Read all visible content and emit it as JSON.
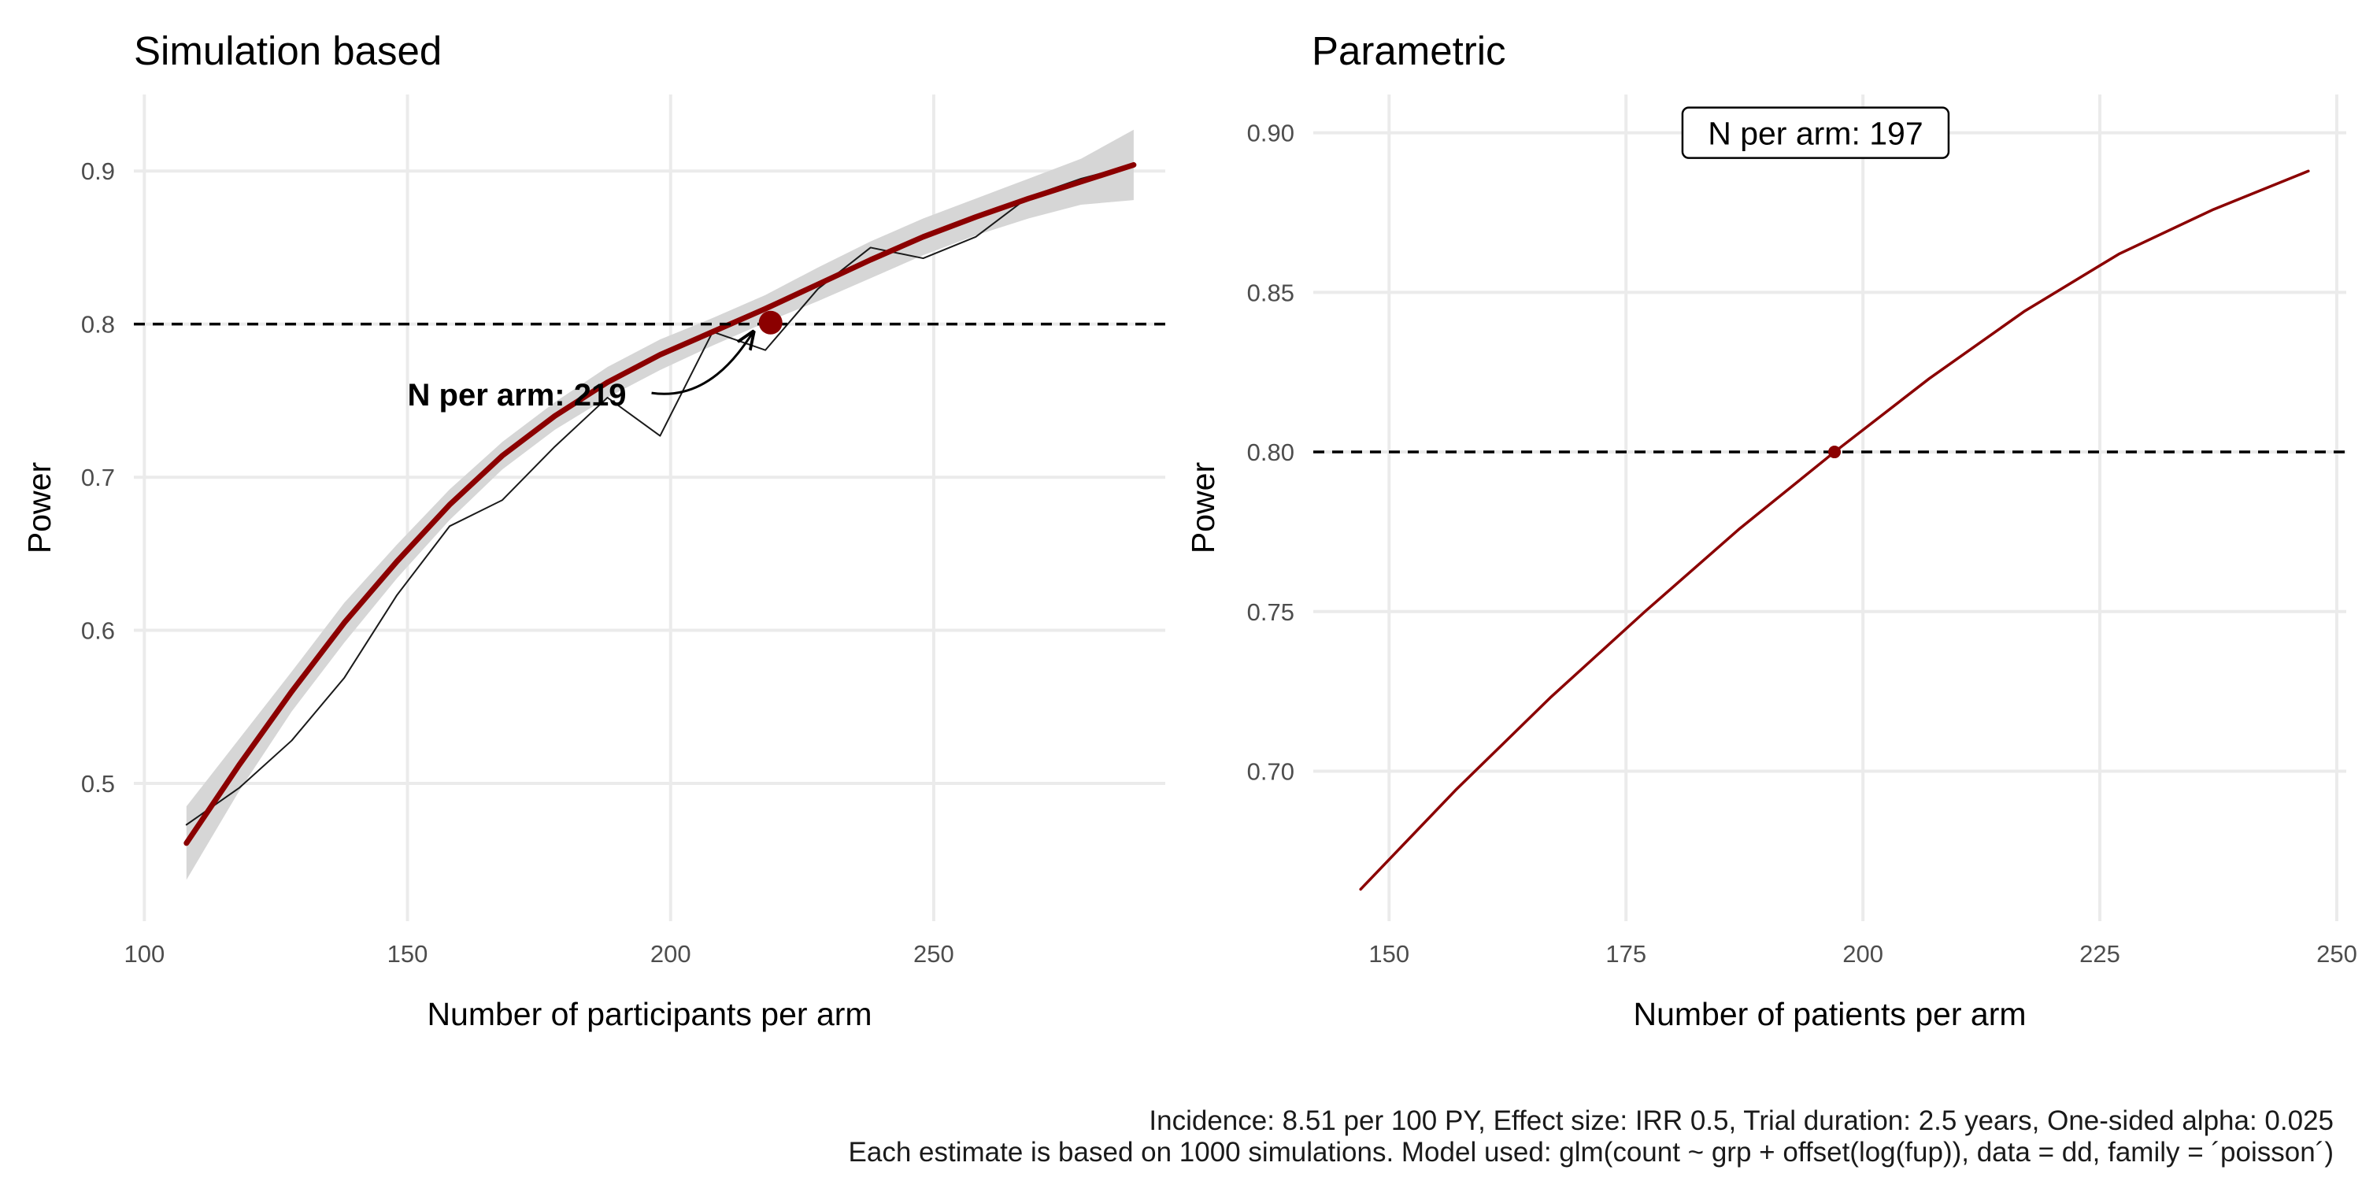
{
  "chart_data": [
    {
      "type": "line",
      "title": "Simulation based",
      "xlabel": "Number of participants per arm",
      "ylabel": "Power",
      "xlim": [
        98,
        294
      ],
      "ylim": [
        0.41,
        0.95
      ],
      "x_ticks": [
        100,
        150,
        200,
        250
      ],
      "y_ticks": [
        0.5,
        0.6,
        0.7,
        0.8,
        0.9
      ],
      "x_tick_labels": [
        "100",
        "150",
        "200",
        "250"
      ],
      "y_tick_labels": [
        "0.5",
        "0.6",
        "0.7",
        "0.8",
        "0.9"
      ],
      "grid": true,
      "reference_line": {
        "y": 0.8,
        "style": "dashed"
      },
      "series": [
        {
          "kind": "simulated",
          "color": "#1a1a1a",
          "x": [
            108,
            118,
            128,
            138,
            148,
            158,
            168,
            178,
            188,
            198,
            208,
            218,
            228,
            238,
            248,
            258,
            268,
            278,
            288
          ],
          "y": [
            0.473,
            0.497,
            0.528,
            0.569,
            0.623,
            0.668,
            0.685,
            0.72,
            0.752,
            0.727,
            0.795,
            0.783,
            0.823,
            0.85,
            0.843,
            0.857,
            0.883,
            0.895,
            0.904
          ]
        },
        {
          "kind": "smoothed",
          "color": "#8b0000",
          "x": [
            108,
            118,
            128,
            138,
            148,
            158,
            168,
            178,
            188,
            198,
            208,
            218,
            228,
            238,
            248,
            258,
            268,
            278,
            288
          ],
          "y": [
            0.461,
            0.512,
            0.56,
            0.605,
            0.645,
            0.682,
            0.714,
            0.74,
            0.762,
            0.78,
            0.795,
            0.81,
            0.826,
            0.842,
            0.857,
            0.87,
            0.882,
            0.893,
            0.904
          ],
          "band_lower": [
            0.437,
            0.495,
            0.547,
            0.592,
            0.634,
            0.672,
            0.705,
            0.731,
            0.752,
            0.77,
            0.786,
            0.801,
            0.815,
            0.83,
            0.845,
            0.858,
            0.869,
            0.878,
            0.881
          ],
          "band_upper": [
            0.485,
            0.529,
            0.573,
            0.618,
            0.656,
            0.692,
            0.723,
            0.749,
            0.772,
            0.79,
            0.804,
            0.819,
            0.837,
            0.854,
            0.869,
            0.882,
            0.895,
            0.908,
            0.927
          ]
        }
      ],
      "highlight_point": {
        "x": 219,
        "y": 0.801,
        "color": "#8b0000"
      },
      "annotation": {
        "text": "N per arm: 219",
        "x": 150,
        "y": 0.754
      }
    },
    {
      "type": "line",
      "title": "Parametric",
      "xlabel": "Number of patients per arm",
      "ylabel": "Power",
      "xlim": [
        142,
        251
      ],
      "ylim": [
        0.653,
        0.912
      ],
      "x_ticks": [
        150,
        175,
        200,
        225,
        250
      ],
      "y_ticks": [
        0.7,
        0.75,
        0.8,
        0.85,
        0.9
      ],
      "x_tick_labels": [
        "150",
        "175",
        "200",
        "225",
        "250"
      ],
      "y_tick_labels": [
        "0.70",
        "0.75",
        "0.80",
        "0.85",
        "0.90"
      ],
      "grid": true,
      "reference_line": {
        "y": 0.8,
        "style": "dashed"
      },
      "series": [
        {
          "kind": "curve",
          "color": "#8b0000",
          "x": [
            147,
            157,
            167,
            177,
            187,
            197,
            207,
            217,
            227,
            237,
            247
          ],
          "y": [
            0.663,
            0.694,
            0.723,
            0.75,
            0.776,
            0.8,
            0.823,
            0.844,
            0.862,
            0.876,
            0.888
          ]
        }
      ],
      "highlight_point": {
        "x": 197,
        "y": 0.8,
        "color": "#8b0000"
      },
      "annotation": {
        "text": "N per arm: 197",
        "x": 195,
        "y": 0.9,
        "boxed": true
      }
    }
  ],
  "caption": {
    "line1": "Incidence: 8.51 per 100 PY, Effect size: IRR 0.5, Trial duration: 2.5 years, One-sided alpha: 0.025",
    "line2": "Each estimate is based on 1000 simulations. Model used: glm(count ~ grp + offset(log(fup)), data = dd, family = ´poisson´)"
  }
}
